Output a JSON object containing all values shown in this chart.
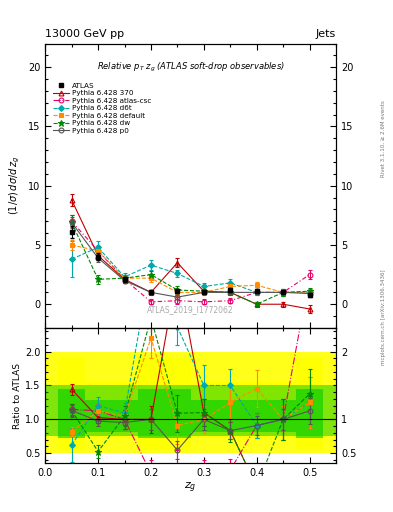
{
  "title_top": "13000 GeV pp",
  "title_top_right": "Jets",
  "plot_title": "Relative $p_T$ $z_g$ (ATLAS soft-drop observables)",
  "ylabel_main": "$(1/\\sigma)\\,d\\sigma/d\\,z_g$",
  "ylabel_ratio": "Ratio to ATLAS",
  "xlabel": "$z_g$",
  "watermark": "ATLAS_2019_I1772062",
  "right_label_top": "Rivet 3.1.10, ≥ 2.6M events",
  "right_label_bot": "mcplots.cern.ch [arXiv:1306.3436]",
  "xvals": [
    0.05,
    0.1,
    0.15,
    0.2,
    0.25,
    0.3,
    0.35,
    0.4,
    0.45,
    0.5
  ],
  "atlas_y": [
    6.1,
    4.0,
    2.1,
    1.0,
    1.1,
    1.0,
    1.2,
    1.1,
    1.0,
    0.8
  ],
  "atlas_yerr": [
    0.5,
    0.3,
    0.2,
    0.15,
    0.15,
    0.15,
    0.15,
    0.15,
    0.15,
    0.15
  ],
  "p370_y": [
    8.8,
    4.1,
    2.1,
    1.0,
    3.5,
    1.1,
    1.0,
    0.0,
    0.0,
    -0.4
  ],
  "p370_yerr": [
    0.5,
    0.3,
    0.3,
    0.2,
    0.4,
    0.2,
    0.15,
    0.15,
    0.2,
    0.3
  ],
  "p370_color": "#c00000",
  "p370_label": "Pythia 6.428 370",
  "patlas_y": [
    7.0,
    4.5,
    2.1,
    0.2,
    0.3,
    0.2,
    0.3,
    1.0,
    1.0,
    2.5
  ],
  "patlas_yerr": [
    0.5,
    0.4,
    0.3,
    0.2,
    0.3,
    0.2,
    0.2,
    0.2,
    0.3,
    0.4
  ],
  "patlas_color": "#e8006a",
  "patlas_label": "Pythia 6.428 atlas-csc",
  "pd6t_y": [
    3.8,
    4.8,
    2.3,
    3.3,
    2.6,
    1.5,
    1.8,
    1.0,
    1.0,
    1.0
  ],
  "pd6t_yerr": [
    1.5,
    0.5,
    0.3,
    0.4,
    0.3,
    0.3,
    0.3,
    0.2,
    0.3,
    0.3
  ],
  "pd6t_color": "#00aaaa",
  "pd6t_label": "Pythia 6.428 d6t",
  "pdef_y": [
    5.0,
    4.5,
    2.2,
    2.2,
    1.0,
    1.0,
    1.5,
    1.6,
    1.0,
    1.0
  ],
  "pdef_yerr": [
    0.4,
    0.4,
    0.3,
    0.3,
    0.3,
    0.2,
    0.3,
    0.3,
    0.2,
    0.3
  ],
  "pdef_color": "#ff8c00",
  "pdef_label": "Pythia 6.428 default",
  "pdw_y": [
    6.9,
    2.1,
    2.2,
    2.5,
    1.2,
    1.1,
    1.0,
    0.0,
    1.0,
    1.1
  ],
  "pdw_yerr": [
    0.6,
    0.4,
    0.3,
    0.3,
    0.3,
    0.2,
    0.2,
    0.2,
    0.3,
    0.3
  ],
  "pdw_color": "#008800",
  "pdw_label": "Pythia 6.428 dw",
  "pp0_y": [
    6.9,
    3.9,
    2.0,
    1.0,
    0.6,
    1.0,
    1.0,
    1.0,
    1.0,
    0.9
  ],
  "pp0_yerr": [
    0.5,
    0.3,
    0.2,
    0.15,
    0.15,
    0.15,
    0.15,
    0.15,
    0.15,
    0.15
  ],
  "pp0_color": "#555555",
  "pp0_label": "Pythia 6.428 p0",
  "ylim_main": [
    -2,
    22
  ],
  "ylim_ratio": [
    0.35,
    2.35
  ],
  "xlim": [
    0.0,
    0.55
  ],
  "ratio_band_yellow_lo": 0.5,
  "ratio_band_yellow_hi": 2.0,
  "ratio_band_green_lo": 0.75,
  "ratio_band_green_hi": 1.5
}
